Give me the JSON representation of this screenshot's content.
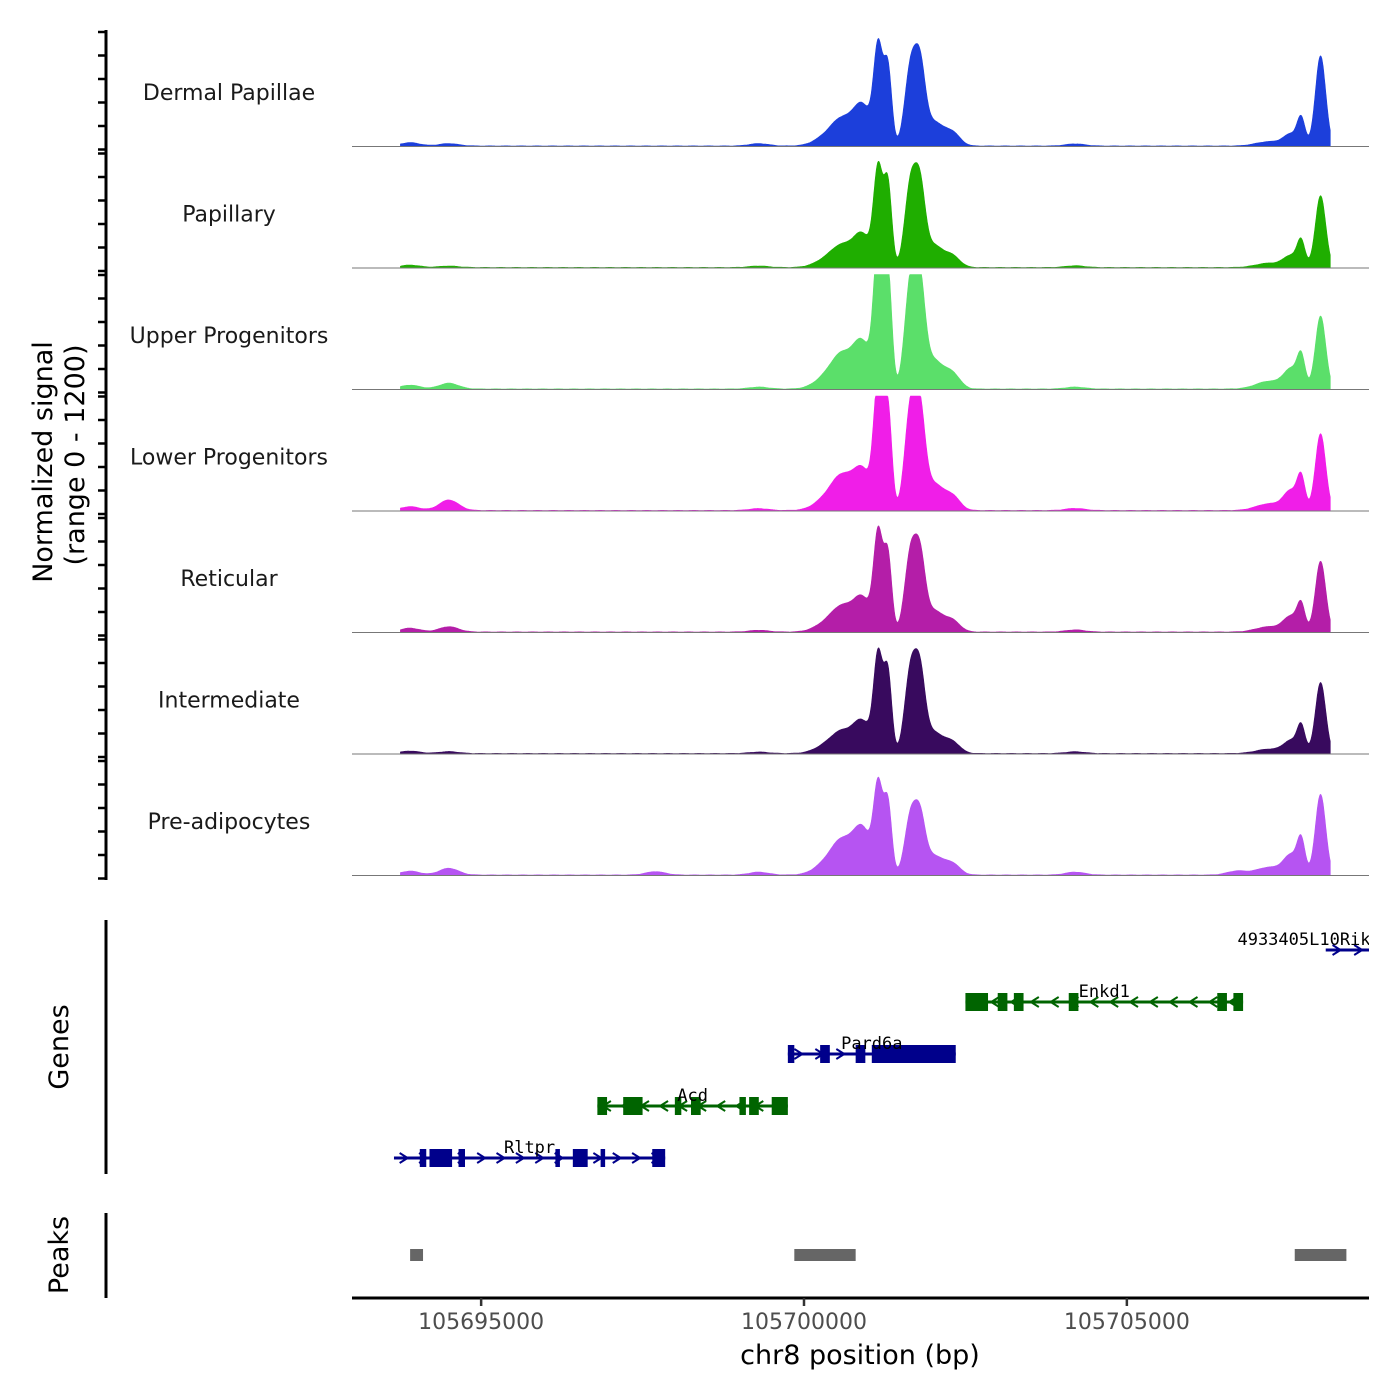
{
  "chart_data": {
    "type": "area",
    "title": "",
    "ylabel": "Normalized signal",
    "ylabel_range": "(range 0 - 1200)",
    "ylim": [
      0,
      1200
    ],
    "xlabel": "chr8 position (bp)",
    "xlim": [
      105693000,
      105708750
    ],
    "xticks": [
      105695000,
      105700000,
      105705000
    ],
    "xtick_labels": [
      "105695000",
      "105700000",
      "105705000"
    ],
    "signal_range": [
      105693750,
      105708150
    ],
    "tracks": [
      {
        "name": "Dermal Papillae",
        "color": "#1c3fdb",
        "peaks": [
          [
            105693900,
            35,
            150
          ],
          [
            105694500,
            25,
            150
          ],
          [
            105699300,
            25,
            150
          ],
          [
            105700400,
            120,
            200
          ],
          [
            105700600,
            200,
            150
          ],
          [
            105700900,
            420,
            140
          ],
          [
            105701150,
            1000,
            70
          ],
          [
            105701300,
            800,
            60
          ],
          [
            105701650,
            800,
            90
          ],
          [
            105701800,
            700,
            80
          ],
          [
            105702000,
            250,
            150
          ],
          [
            105702300,
            130,
            120
          ],
          [
            105704200,
            22,
            150
          ],
          [
            105707200,
            45,
            200
          ],
          [
            105707550,
            120,
            120
          ],
          [
            105707700,
            260,
            60
          ],
          [
            105708000,
            940,
            80
          ]
        ]
      },
      {
        "name": "Papillary",
        "color": "#1fae00",
        "peaks": [
          [
            105693900,
            25,
            150
          ],
          [
            105694500,
            15,
            150
          ],
          [
            105699300,
            15,
            150
          ],
          [
            105700400,
            100,
            200
          ],
          [
            105700600,
            160,
            150
          ],
          [
            105700900,
            340,
            140
          ],
          [
            105701150,
            1000,
            70
          ],
          [
            105701300,
            850,
            60
          ],
          [
            105701650,
            850,
            90
          ],
          [
            105701800,
            700,
            80
          ],
          [
            105702000,
            230,
            150
          ],
          [
            105702300,
            110,
            120
          ],
          [
            105704200,
            18,
            150
          ],
          [
            105707200,
            45,
            200
          ],
          [
            105707550,
            120,
            120
          ],
          [
            105707700,
            250,
            60
          ],
          [
            105708000,
            750,
            80
          ]
        ]
      },
      {
        "name": "Upper Progenitors",
        "color": "#5bdf6a",
        "peaks": [
          [
            105693900,
            40,
            150
          ],
          [
            105694500,
            60,
            150
          ],
          [
            105699300,
            20,
            150
          ],
          [
            105700400,
            150,
            200
          ],
          [
            105700600,
            260,
            150
          ],
          [
            105700900,
            480,
            140
          ],
          [
            105701150,
            1450,
            70
          ],
          [
            105701300,
            1200,
            60
          ],
          [
            105701650,
            1100,
            90
          ],
          [
            105701800,
            900,
            80
          ],
          [
            105702000,
            300,
            150
          ],
          [
            105702300,
            150,
            120
          ],
          [
            105704200,
            20,
            150
          ],
          [
            105707200,
            80,
            200
          ],
          [
            105707550,
            200,
            120
          ],
          [
            105707700,
            300,
            60
          ],
          [
            105708000,
            760,
            80
          ]
        ]
      },
      {
        "name": "Lower Progenitors",
        "color": "#f01ee8",
        "peaks": [
          [
            105693900,
            40,
            150
          ],
          [
            105694500,
            110,
            150
          ],
          [
            105699300,
            20,
            150
          ],
          [
            105700400,
            150,
            200
          ],
          [
            105700600,
            260,
            150
          ],
          [
            105700900,
            420,
            140
          ],
          [
            105701150,
            1300,
            70
          ],
          [
            105701300,
            1050,
            60
          ],
          [
            105701650,
            1050,
            90
          ],
          [
            105701800,
            850,
            80
          ],
          [
            105702000,
            280,
            150
          ],
          [
            105702300,
            140,
            120
          ],
          [
            105704200,
            22,
            150
          ],
          [
            105707200,
            70,
            200
          ],
          [
            105707550,
            200,
            120
          ],
          [
            105707700,
            300,
            60
          ],
          [
            105708000,
            800,
            80
          ]
        ]
      },
      {
        "name": "Reticular",
        "color": "#b41ea8",
        "peaks": [
          [
            105693900,
            40,
            150
          ],
          [
            105694500,
            55,
            150
          ],
          [
            105699300,
            18,
            150
          ],
          [
            105700400,
            110,
            200
          ],
          [
            105700600,
            190,
            150
          ],
          [
            105700900,
            350,
            140
          ],
          [
            105701150,
            1000,
            70
          ],
          [
            105701300,
            780,
            60
          ],
          [
            105701650,
            800,
            90
          ],
          [
            105701800,
            650,
            80
          ],
          [
            105702000,
            220,
            150
          ],
          [
            105702300,
            110,
            120
          ],
          [
            105704200,
            22,
            150
          ],
          [
            105707200,
            55,
            200
          ],
          [
            105707550,
            160,
            120
          ],
          [
            105707700,
            250,
            60
          ],
          [
            105708000,
            740,
            80
          ]
        ]
      },
      {
        "name": "Intermediate",
        "color": "#380a5e",
        "peaks": [
          [
            105693900,
            25,
            150
          ],
          [
            105694500,
            20,
            150
          ],
          [
            105699300,
            15,
            150
          ],
          [
            105700400,
            100,
            200
          ],
          [
            105700600,
            160,
            150
          ],
          [
            105700900,
            330,
            140
          ],
          [
            105701150,
            1000,
            70
          ],
          [
            105701300,
            820,
            60
          ],
          [
            105701650,
            850,
            90
          ],
          [
            105701800,
            700,
            80
          ],
          [
            105702000,
            220,
            150
          ],
          [
            105702300,
            110,
            120
          ],
          [
            105704200,
            18,
            150
          ],
          [
            105707200,
            45,
            200
          ],
          [
            105707550,
            130,
            120
          ],
          [
            105707700,
            260,
            60
          ],
          [
            105708000,
            740,
            80
          ]
        ]
      },
      {
        "name": "Pre-adipocytes",
        "color": "#b654f2",
        "peaks": [
          [
            105693900,
            40,
            150
          ],
          [
            105694500,
            70,
            150
          ],
          [
            105697700,
            35,
            150
          ],
          [
            105699300,
            30,
            150
          ],
          [
            105700400,
            150,
            200
          ],
          [
            105700600,
            260,
            150
          ],
          [
            105700900,
            480,
            140
          ],
          [
            105701150,
            890,
            70
          ],
          [
            105701300,
            730,
            60
          ],
          [
            105701650,
            600,
            90
          ],
          [
            105701800,
            500,
            80
          ],
          [
            105702000,
            200,
            150
          ],
          [
            105702300,
            110,
            120
          ],
          [
            105704200,
            30,
            150
          ],
          [
            105706700,
            40,
            150
          ],
          [
            105707200,
            80,
            200
          ],
          [
            105707550,
            200,
            120
          ],
          [
            105707700,
            320,
            60
          ],
          [
            105708000,
            840,
            80
          ]
        ]
      }
    ],
    "genes_title": "Genes",
    "genes": [
      {
        "name": "Rltpr",
        "strand": "+",
        "color": "#00008b",
        "row": 1,
        "start": 105693650,
        "end": 105697850,
        "exons": [
          [
            105694050,
            105694150
          ],
          [
            105694200,
            105694550
          ],
          [
            105694650,
            105694750
          ],
          [
            105696150,
            105696220
          ],
          [
            105696420,
            105696650
          ],
          [
            105696850,
            105696920
          ],
          [
            105697650,
            105697850
          ]
        ]
      },
      {
        "name": "Acd",
        "strand": "-",
        "color": "#006400",
        "row": 2,
        "start": 105696800,
        "end": 105699750,
        "exons": [
          [
            105696800,
            105696950
          ],
          [
            105697200,
            105697500
          ],
          [
            105698000,
            105698100
          ],
          [
            105698250,
            105698400
          ],
          [
            105699000,
            105699100
          ],
          [
            105699150,
            105699300
          ],
          [
            105699500,
            105699750
          ]
        ]
      },
      {
        "name": "Pard6a",
        "strand": "+",
        "color": "#00008b",
        "row": 3,
        "start": 105699750,
        "end": 105702350,
        "exons": [
          [
            105699750,
            105699850
          ],
          [
            105700250,
            105700400
          ],
          [
            105700800,
            105700950
          ],
          [
            105701050,
            105702350
          ]
        ]
      },
      {
        "name": "Enkd1",
        "strand": "-",
        "color": "#006400",
        "row": 4,
        "start": 105702500,
        "end": 105706800,
        "exons": [
          [
            105702500,
            105702850
          ],
          [
            105703000,
            105703150
          ],
          [
            105703250,
            105703400
          ],
          [
            105704100,
            105704250
          ],
          [
            105706400,
            105706550
          ],
          [
            105706650,
            105706800
          ]
        ]
      },
      {
        "name": "4933405L10Rik",
        "strand": "+",
        "color": "#00008b",
        "row": 5,
        "start": 105708080,
        "end": 105708800,
        "exons": []
      }
    ],
    "peaks_title": "Peaks",
    "peaks_color": "#666666",
    "peak_regions": [
      [
        105693900,
        105694100
      ],
      [
        105699850,
        105700800
      ],
      [
        105707600,
        105708400
      ]
    ]
  }
}
